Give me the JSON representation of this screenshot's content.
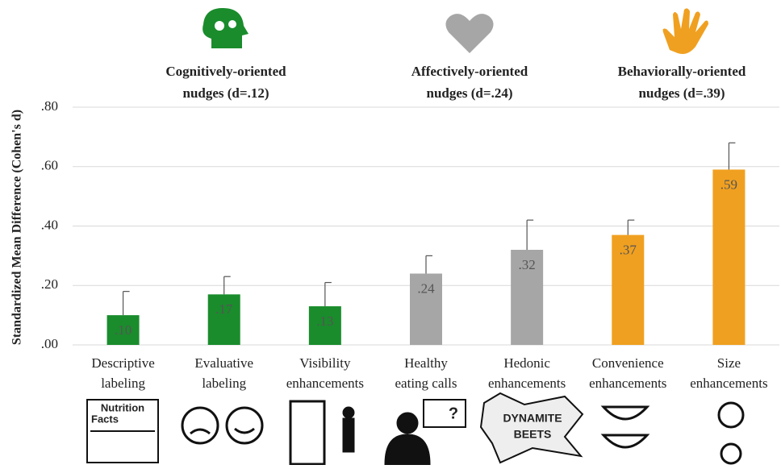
{
  "chart_data": {
    "type": "bar",
    "y_label": "Standardized Mean Difference (Cohen's d)",
    "groups": [
      {
        "label": [
          "Cognitively-oriented",
          "nudges (d=.12)"
        ]
      },
      {
        "label": [
          "Affectively-oriented",
          "nudges (d=.24)"
        ]
      },
      {
        "label": [
          "Behaviorally-oriented",
          "nudges (d=.39)"
        ]
      }
    ],
    "categories": [
      [
        "Descriptive",
        "labeling"
      ],
      [
        "Evaluative",
        "labeling"
      ],
      [
        "Visibility",
        "enhancements"
      ],
      [
        "Healthy",
        "eating calls"
      ],
      [
        "Hedonic",
        "enhancements"
      ],
      [
        "Convenience",
        "enhancements"
      ],
      [
        "Size",
        "enhancements"
      ]
    ],
    "values": [
      0.1,
      0.17,
      0.13,
      0.24,
      0.32,
      0.37,
      0.59
    ],
    "value_labels": [
      ".10",
      ".17",
      ".13",
      ".24",
      ".32",
      ".37",
      ".59"
    ],
    "errors": [
      0.08,
      0.06,
      0.08,
      0.06,
      0.1,
      0.05,
      0.09
    ],
    "colors": [
      "#1a8c2c",
      "#1a8c2c",
      "#1a8c2c",
      "#a6a6a6",
      "#a6a6a6",
      "#f0a020",
      "#f0a020"
    ],
    "ylim": [
      0,
      0.8
    ],
    "yticks": [
      {
        "value": 0,
        "label": ".00"
      },
      {
        "value": 0.2,
        "label": ".20"
      },
      {
        "value": 0.4,
        "label": ".40"
      },
      {
        "value": 0.6,
        "label": ".60"
      },
      {
        "value": 0.8,
        "label": ".80"
      }
    ],
    "grid": true,
    "icon_texts": [
      "Nutrition",
      "Facts",
      "DYNAMITE",
      "BEETS",
      "?"
    ]
  }
}
